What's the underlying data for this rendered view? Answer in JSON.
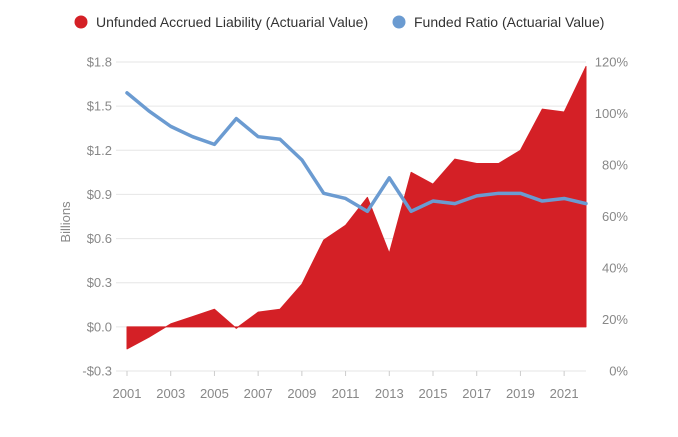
{
  "chart_data": {
    "type": "area",
    "title": "",
    "ylabel_left": "Billions",
    "ylabel_right": "",
    "grid": true,
    "legend_position": "top",
    "x": [
      2001,
      2002,
      2003,
      2004,
      2005,
      2006,
      2007,
      2008,
      2009,
      2010,
      2011,
      2012,
      2013,
      2014,
      2015,
      2016,
      2017,
      2018,
      2019,
      2020,
      2021,
      2022
    ],
    "x_ticks": [
      2001,
      2003,
      2005,
      2007,
      2009,
      2011,
      2013,
      2015,
      2017,
      2019,
      2021
    ],
    "x_tick_labels": [
      "2001",
      "2003",
      "2005",
      "2007",
      "2009",
      "2011",
      "2013",
      "2015",
      "2017",
      "2019",
      "2021"
    ],
    "y_left": {
      "range": [
        -0.3,
        1.8
      ],
      "ticks": [
        -0.3,
        0.0,
        0.3,
        0.6,
        0.9,
        1.2,
        1.5,
        1.8
      ],
      "tick_labels": [
        "-$0.3",
        "$0.0",
        "$0.3",
        "$0.6",
        "$0.9",
        "$1.2",
        "$1.5",
        "$1.8"
      ]
    },
    "y_right": {
      "range": [
        0,
        120
      ],
      "ticks": [
        0,
        20,
        40,
        60,
        80,
        100,
        120
      ],
      "tick_labels": [
        "0%",
        "20%",
        "40%",
        "60%",
        "80%",
        "100%",
        "120%"
      ]
    },
    "series": [
      {
        "name": "Unfunded Accrued Liability (Actuarial Value)",
        "type": "area",
        "axis": "left",
        "color": "#d42026",
        "values": [
          -0.15,
          -0.07,
          0.02,
          0.07,
          0.12,
          -0.01,
          0.1,
          0.12,
          0.29,
          0.59,
          0.69,
          0.88,
          0.5,
          1.05,
          0.97,
          1.14,
          1.11,
          1.11,
          1.2,
          1.48,
          1.46,
          1.77
        ]
      },
      {
        "name": "Funded Ratio (Actuarial Value)",
        "type": "line",
        "axis": "right",
        "color": "#6b9bd1",
        "values": [
          108,
          101,
          95,
          91,
          88,
          98,
          91,
          90,
          82,
          69,
          67,
          62,
          75,
          62,
          66,
          65,
          68,
          69,
          69,
          66,
          67,
          65
        ]
      }
    ]
  },
  "colors": {
    "grid": "#e6e6e6",
    "tick_text": "#888888",
    "legend_text": "#333333"
  }
}
